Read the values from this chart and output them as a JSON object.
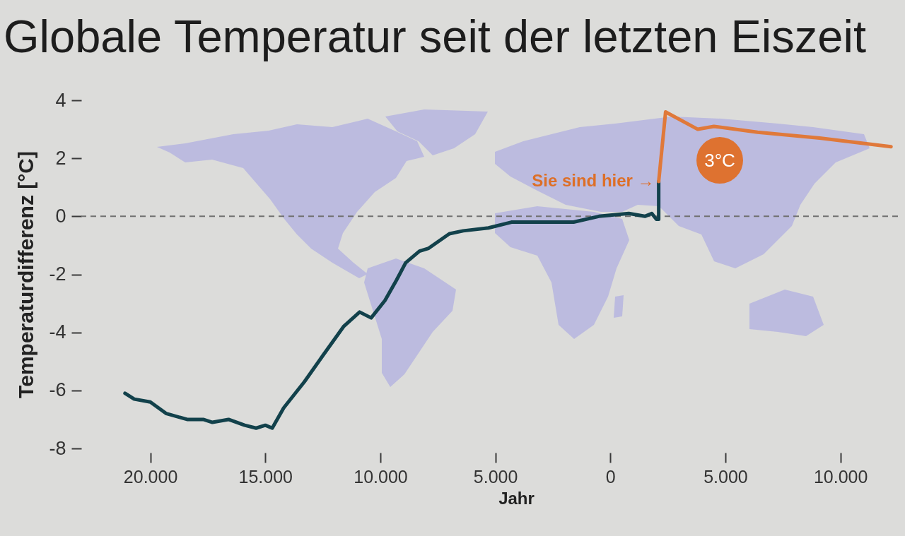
{
  "chart_data": {
    "type": "line",
    "title": "Globale Temperatur seit der letzten Eiszeit",
    "xlabel": "Jahr",
    "ylabel": "Temperaturdifferenz [°C]",
    "series": [
      {
        "color": "#12414b",
        "x": [
          -21100,
          -20700,
          -20000,
          -19300,
          -18400,
          -17700,
          -17300,
          -16600,
          -15900,
          -15400,
          -15000,
          -14700,
          -14200,
          -13300,
          -12500,
          -11600,
          -10900,
          -10400,
          -9800,
          -9300,
          -8900,
          -8300,
          -7900,
          -7000,
          -6400,
          -5300,
          -4300,
          -3200,
          -2400,
          -1600,
          -500,
          800,
          1500,
          1800,
          2000,
          2100,
          2100
        ],
        "values": [
          -6.1,
          -6.3,
          -6.4,
          -6.8,
          -7.0,
          -7.0,
          -7.1,
          -7.0,
          -7.2,
          -7.3,
          -7.2,
          -7.3,
          -6.6,
          -5.7,
          -4.8,
          -3.8,
          -3.3,
          -3.5,
          -2.9,
          -2.2,
          -1.6,
          -1.2,
          -1.1,
          -0.6,
          -0.5,
          -0.4,
          -0.2,
          -0.2,
          -0.2,
          -0.2,
          0.0,
          0.1,
          0.0,
          0.1,
          -0.1,
          -0.1,
          1.2
        ]
      },
      {
        "color": "#e0793a",
        "x": [
          2100,
          2400,
          3800,
          4500,
          6400,
          9100,
          12200
        ],
        "values": [
          1.2,
          3.6,
          3.0,
          3.1,
          2.9,
          2.7,
          2.4
        ]
      }
    ],
    "xlim": [
      -23000,
      12500
    ],
    "xticks": [
      {
        "value": -20000,
        "label": "20.000"
      },
      {
        "value": -15000,
        "label": "15.000"
      },
      {
        "value": -10000,
        "label": "10.000"
      },
      {
        "value": -5000,
        "label": "5.000"
      },
      0,
      {
        "value": 5000,
        "label": "5.000"
      },
      {
        "value": 10000,
        "label": "10.000"
      }
    ],
    "ylim": [
      -8,
      4
    ],
    "yticks": [
      4,
      2,
      0,
      -2,
      -4,
      -6,
      -8
    ],
    "ref_lines": [
      {
        "axis": "y",
        "value": 0,
        "color": "#707070",
        "line_style": "dashed"
      }
    ],
    "annotations": [
      {
        "text": "Sie sind hier →",
        "x": 2100,
        "y": 1.2
      },
      "3°C"
    ]
  }
}
